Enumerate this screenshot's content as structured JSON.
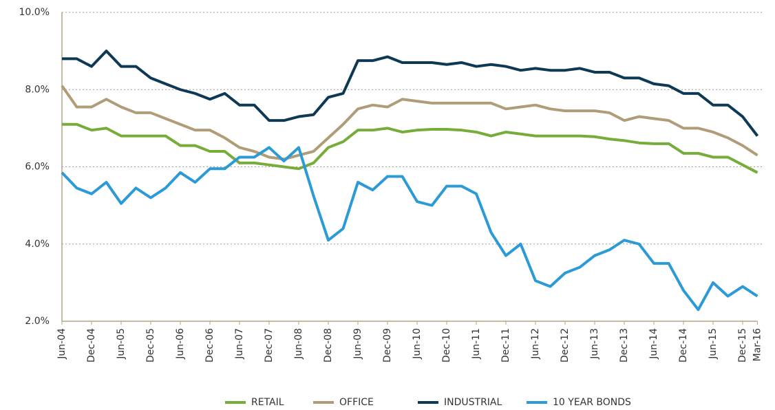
{
  "chart_data": {
    "type": "line",
    "categories": [
      "Jun-04",
      null,
      "Dec-04",
      null,
      "Jun-05",
      null,
      "Dec-05",
      null,
      "Jun-06",
      null,
      "Dec-06",
      null,
      "Jun-07",
      null,
      "Dec-07",
      null,
      "Jun-08",
      null,
      "Dec-08",
      null,
      "Jun-09",
      null,
      "Dec-09",
      null,
      "Jun-10",
      null,
      "Dec-10",
      null,
      "Jun-11",
      null,
      "Dec-11",
      null,
      "Jun-12",
      null,
      "Dec-12",
      null,
      "Jun-13",
      null,
      "Dec-13",
      null,
      "Jun-14",
      null,
      "Dec-14",
      null,
      "Jun-15",
      null,
      "Dec-15",
      "Mar-16"
    ],
    "series": [
      {
        "name": "RETAIL",
        "color": "#76ad3a",
        "values": [
          7.1,
          7.1,
          6.95,
          7.0,
          6.8,
          6.8,
          6.8,
          6.8,
          6.55,
          6.55,
          6.4,
          6.4,
          6.1,
          6.1,
          6.05,
          6.0,
          5.95,
          6.1,
          6.5,
          6.65,
          6.95,
          6.95,
          7.0,
          6.9,
          6.95,
          6.97,
          6.97,
          6.95,
          6.9,
          6.8,
          6.9,
          6.85,
          6.8,
          6.8,
          6.8,
          6.8,
          6.78,
          6.72,
          6.68,
          6.62,
          6.6,
          6.6,
          6.35,
          6.35,
          6.25,
          6.25,
          6.05,
          5.85
        ]
      },
      {
        "name": "OFFICE",
        "color": "#b09d78",
        "values": [
          8.1,
          7.55,
          7.55,
          7.75,
          7.55,
          7.4,
          7.4,
          7.25,
          7.1,
          6.95,
          6.95,
          6.75,
          6.5,
          6.4,
          6.25,
          6.2,
          6.3,
          6.4,
          6.75,
          7.1,
          7.5,
          7.6,
          7.55,
          7.75,
          7.7,
          7.65,
          7.65,
          7.65,
          7.65,
          7.65,
          7.5,
          7.55,
          7.6,
          7.5,
          7.45,
          7.45,
          7.45,
          7.4,
          7.2,
          7.3,
          7.25,
          7.2,
          7.0,
          7.0,
          6.9,
          6.75,
          6.55,
          6.3
        ]
      },
      {
        "name": "INDUSTRIAL",
        "color": "#0e3954",
        "values": [
          8.8,
          8.8,
          8.6,
          9.0,
          8.6,
          8.6,
          8.3,
          8.15,
          8.0,
          7.9,
          7.75,
          7.9,
          7.6,
          7.6,
          7.2,
          7.2,
          7.3,
          7.35,
          7.8,
          7.9,
          8.75,
          8.75,
          8.85,
          8.7,
          8.7,
          8.7,
          8.65,
          8.7,
          8.6,
          8.65,
          8.6,
          8.5,
          8.55,
          8.5,
          8.5,
          8.55,
          8.45,
          8.45,
          8.3,
          8.3,
          8.15,
          8.1,
          7.9,
          7.9,
          7.6,
          7.6,
          7.3,
          6.8
        ]
      },
      {
        "name": "10 YEAR BONDS",
        "color": "#2b9ad6",
        "values": [
          5.85,
          5.45,
          5.3,
          5.6,
          5.05,
          5.45,
          5.2,
          5.45,
          5.85,
          5.6,
          5.95,
          5.95,
          6.25,
          6.25,
          6.5,
          6.15,
          6.5,
          5.25,
          4.1,
          4.4,
          5.6,
          5.4,
          5.75,
          5.75,
          5.1,
          5.0,
          5.5,
          5.5,
          5.3,
          4.3,
          3.7,
          4.0,
          3.05,
          2.9,
          3.25,
          3.4,
          3.7,
          3.85,
          4.1,
          4.0,
          3.5,
          3.5,
          2.8,
          2.3,
          3.0,
          2.65,
          2.9,
          2.65
        ]
      }
    ],
    "ylim": [
      2,
      10
    ],
    "yticks": [
      {
        "value": 2,
        "label": "2.0%"
      },
      {
        "value": 4,
        "label": "4.0%"
      },
      {
        "value": 6,
        "label": "6.0%"
      },
      {
        "value": 8,
        "label": "8.0%"
      },
      {
        "value": 10,
        "label": "10.0%"
      }
    ],
    "grid": true,
    "legend": "bottom"
  }
}
